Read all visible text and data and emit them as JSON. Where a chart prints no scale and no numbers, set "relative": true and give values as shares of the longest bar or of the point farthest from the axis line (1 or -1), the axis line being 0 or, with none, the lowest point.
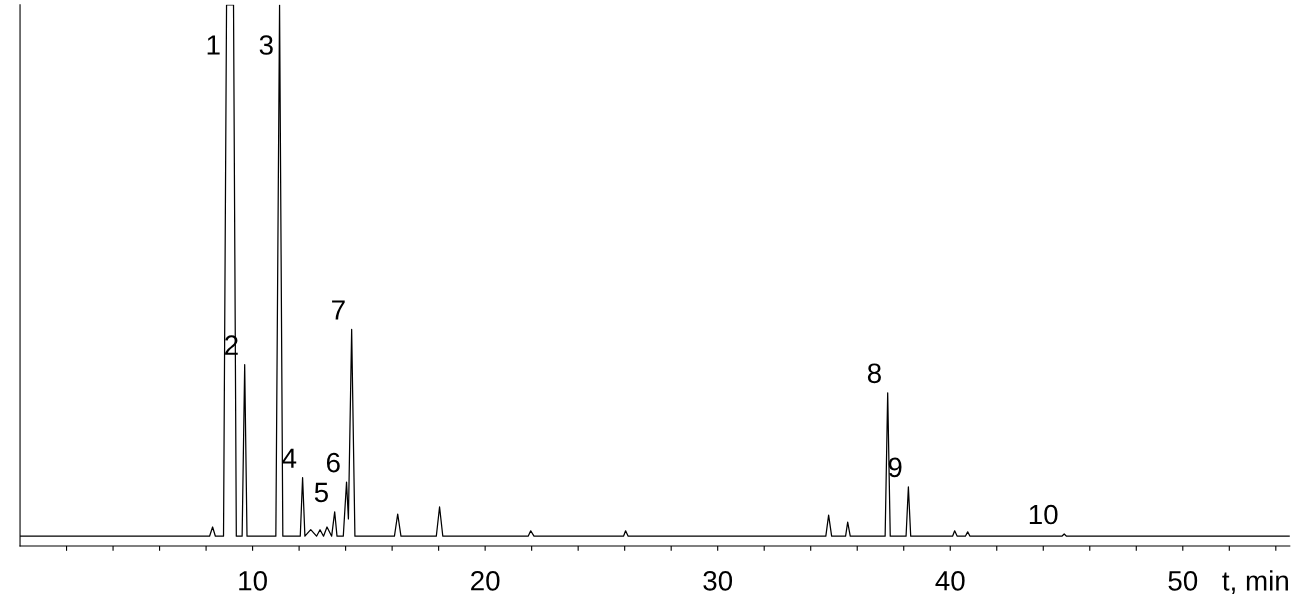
{
  "chart_data": {
    "type": "line",
    "relative": true,
    "xlabel": "t, min",
    "xlim": [
      0,
      54.6
    ],
    "xticks": [
      {
        "value": 2,
        "label": null
      },
      {
        "value": 4,
        "label": null
      },
      {
        "value": 6,
        "label": null
      },
      {
        "value": 8,
        "label": null
      },
      10,
      {
        "value": 12,
        "label": null
      },
      {
        "value": 14,
        "label": null
      },
      {
        "value": 16,
        "label": null
      },
      {
        "value": 18,
        "label": null
      },
      20,
      {
        "value": 22,
        "label": null
      },
      {
        "value": 24,
        "label": null
      },
      {
        "value": 26,
        "label": null
      },
      {
        "value": 28,
        "label": null
      },
      30,
      {
        "value": 32,
        "label": null
      },
      {
        "value": 34,
        "label": null
      },
      {
        "value": 36,
        "label": null
      },
      {
        "value": 38,
        "label": null
      },
      40,
      {
        "value": 42,
        "label": null
      },
      {
        "value": 44,
        "label": null
      },
      {
        "value": 46,
        "label": null
      },
      {
        "value": 48,
        "label": null
      },
      50,
      {
        "value": 52,
        "label": null
      },
      {
        "value": 54,
        "label": null
      }
    ],
    "grid": false,
    "marker": "none",
    "line_style": "solid",
    "series": [
      {
        "color": "#000000",
        "x": [
          0,
          7.5,
          8.15,
          8.28,
          8.4,
          8.75,
          8.88,
          9.0,
          9.1,
          9.18,
          9.3,
          9.55,
          9.66,
          9.76,
          10.0,
          11.0,
          11.16,
          11.3,
          11.5,
          12.05,
          12.15,
          12.25,
          12.5,
          12.75,
          12.9,
          13.05,
          13.2,
          13.4,
          13.53,
          13.63,
          13.9,
          14.04,
          14.12,
          14.26,
          14.4,
          15.0,
          16.1,
          16.24,
          16.38,
          17.9,
          18.04,
          18.18,
          21.85,
          21.96,
          22.1,
          25.95,
          26.04,
          26.15,
          34.65,
          34.77,
          34.9,
          35.5,
          35.59,
          35.7,
          37.2,
          37.31,
          37.42,
          38.1,
          38.2,
          38.3,
          40.1,
          40.19,
          40.3,
          40.65,
          40.75,
          40.85,
          44.8,
          44.9,
          45.0,
          54.6
        ],
        "values": [
          0.018,
          0.018,
          0.018,
          0.035,
          0.018,
          0.018,
          1,
          1,
          1,
          1,
          0.018,
          0.018,
          0.335,
          0.018,
          0.018,
          0.018,
          1,
          0.018,
          0.018,
          0.018,
          0.126,
          0.018,
          0.03,
          0.018,
          0.03,
          0.018,
          0.035,
          0.018,
          0.063,
          0.018,
          0.018,
          0.118,
          0.05,
          0.4,
          0.018,
          0.018,
          0.018,
          0.059,
          0.018,
          0.018,
          0.072,
          0.018,
          0.018,
          0.028,
          0.018,
          0.018,
          0.028,
          0.018,
          0.018,
          0.057,
          0.018,
          0.018,
          0.044,
          0.018,
          0.018,
          0.283,
          0.018,
          0.018,
          0.109,
          0.018,
          0.018,
          0.028,
          0.018,
          0.018,
          0.026,
          0.018,
          0.018,
          0.022,
          0.018,
          0.018
        ]
      }
    ],
    "annotations": [
      {
        "text": "1",
        "x": 8.88,
        "y": 1
      },
      {
        "text": "2",
        "x": 9.66,
        "y": 0.335
      },
      {
        "text": "3",
        "x": 11.16,
        "y": 1
      },
      {
        "text": "4",
        "x": 12.15,
        "y": 0.126
      },
      {
        "text": "5",
        "x": 13.53,
        "y": 0.063
      },
      {
        "text": "6",
        "x": 14.04,
        "y": 0.118
      },
      {
        "text": "7",
        "x": 14.26,
        "y": 0.4
      },
      {
        "text": "8",
        "x": 37.31,
        "y": 0.283
      },
      {
        "text": "9",
        "x": 38.2,
        "y": 0.109
      },
      {
        "text": "10",
        "x": 44.9,
        "y": 0.022
      }
    ]
  }
}
